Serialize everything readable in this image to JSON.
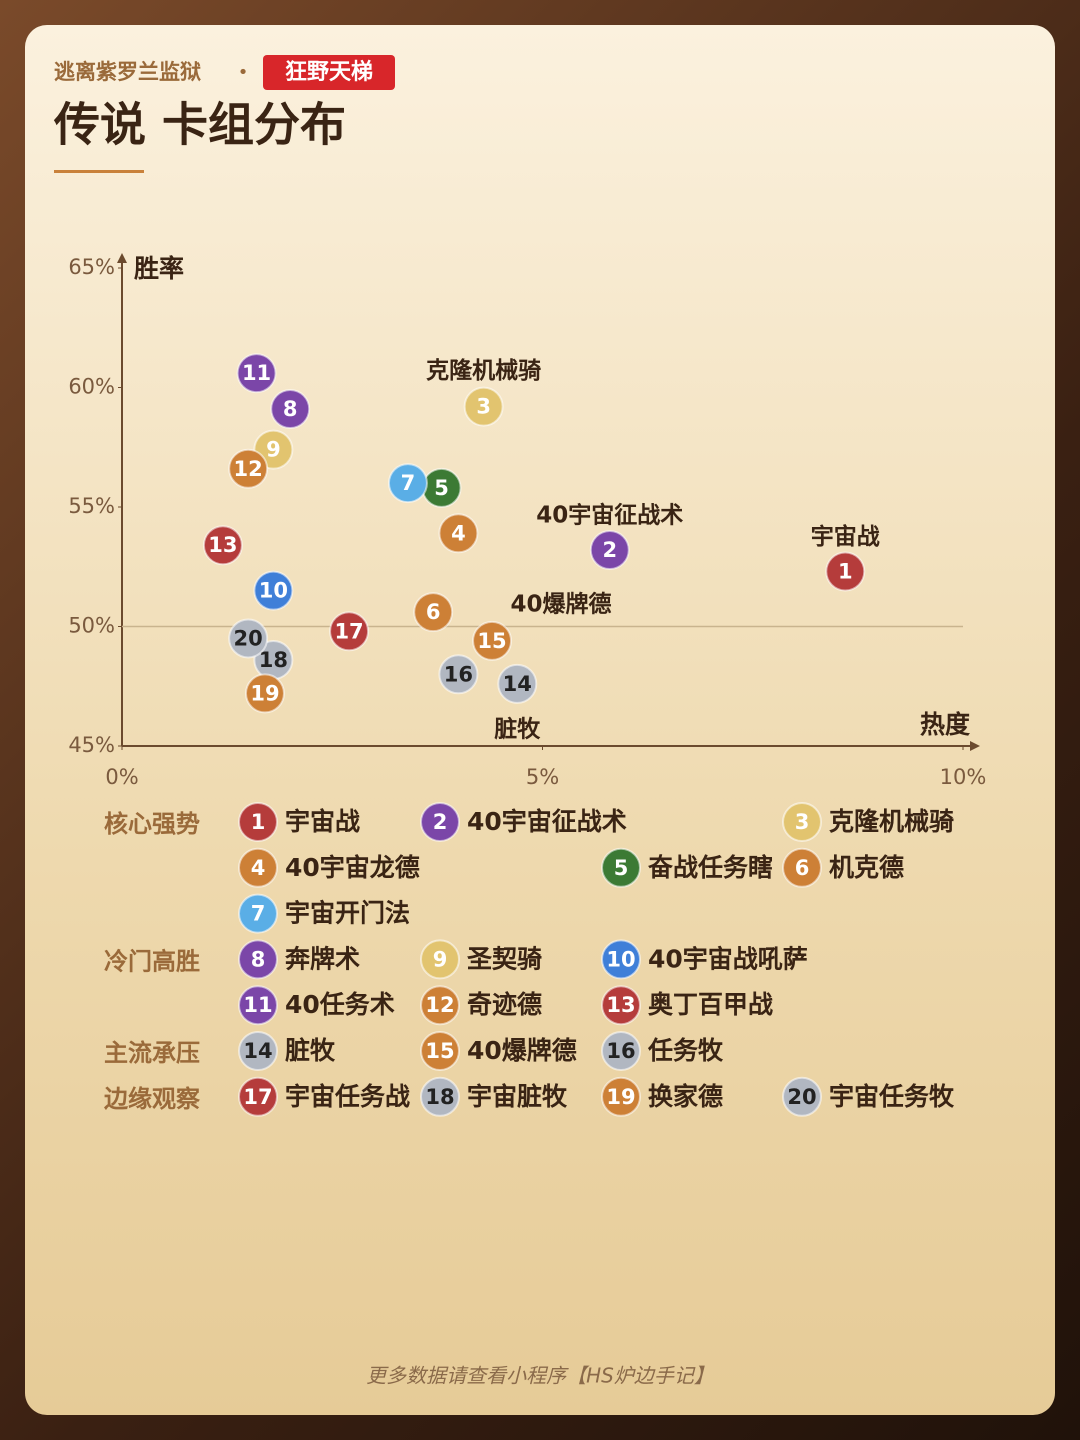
{
  "header": {
    "subtitle": "逃离紫罗兰监狱",
    "separator": "•",
    "badge": "狂野天梯",
    "title": "传说 卡组分布"
  },
  "chart_data": {
    "type": "scatter",
    "x_label": "热度",
    "y_label": "胜率",
    "xlim": [
      0,
      10
    ],
    "xticks": [
      {
        "value": 0,
        "label": "0%"
      },
      {
        "value": 5,
        "label": "5%"
      },
      {
        "value": 10,
        "label": "10%"
      }
    ],
    "ylim": [
      45,
      65
    ],
    "yticks": [
      {
        "value": 45,
        "label": "45%"
      },
      {
        "value": 50,
        "label": "50%"
      },
      {
        "value": 55,
        "label": "55%"
      },
      {
        "value": 60,
        "label": "60%"
      },
      {
        "value": 65,
        "label": "65%"
      }
    ],
    "hline": 50,
    "series": [
      {
        "name": "核心强势",
        "labels": [
          "1",
          "2",
          "3",
          "4",
          "5",
          "6",
          "7"
        ],
        "names": [
          "宇宙战",
          "40宇宙征战术",
          "克隆机械骑",
          "40宇宙龙德",
          "奋战任务瞎",
          "机克德",
          "宇宙开门法"
        ],
        "colors": [
          "#b53c3b",
          "#7b46a8",
          "#e2c46f",
          "#cd8036",
          "#3c7a34",
          "#cd8036",
          "#5aaee6"
        ],
        "x": [
          8.6,
          5.8,
          4.3,
          4.0,
          3.8,
          3.7,
          3.4
        ],
        "values": [
          52.3,
          53.2,
          59.2,
          53.9,
          55.8,
          50.6,
          56.0
        ]
      },
      {
        "name": "冷门高胜",
        "labels": [
          "8",
          "9",
          "10",
          "11",
          "12",
          "13"
        ],
        "names": [
          "奔牌术",
          "圣契骑",
          "40宇宙战吼萨",
          "40任务术",
          "奇迹德",
          "奥丁百甲战"
        ],
        "colors": [
          "#7b46a8",
          "#e2c46f",
          "#3f7fd8",
          "#7b46a8",
          "#cd8036",
          "#b53c3b"
        ],
        "x": [
          2.0,
          1.8,
          1.8,
          1.6,
          1.5,
          1.2
        ],
        "values": [
          59.1,
          57.4,
          51.5,
          60.6,
          56.6,
          53.4
        ]
      },
      {
        "name": "主流承压",
        "labels": [
          "14",
          "15",
          "16"
        ],
        "names": [
          "脏牧",
          "40爆牌德",
          "任务牧"
        ],
        "colors": [
          "#b1b7c1",
          "#cd8036",
          "#b1b7c1"
        ],
        "x": [
          4.7,
          4.4,
          4.0
        ],
        "values": [
          47.6,
          49.4,
          48.0
        ]
      },
      {
        "name": "边缘观察",
        "labels": [
          "17",
          "18",
          "19",
          "20"
        ],
        "names": [
          "宇宙任务战",
          "宇宙脏牧",
          "换家德",
          "宇宙任务牧"
        ],
        "colors": [
          "#b53c3b",
          "#b1b7c1",
          "#cd8036",
          "#b1b7c1"
        ],
        "x": [
          2.7,
          1.8,
          1.7,
          1.5
        ],
        "values": [
          49.8,
          48.6,
          47.2,
          49.5
        ]
      }
    ],
    "annotations": [
      "宇宙战",
      "40宇宙征战术",
      "克隆机械骑",
      "40爆牌德",
      "脏牧"
    ]
  },
  "footer": "更多数据请查看小程序【HS炉边手记】"
}
